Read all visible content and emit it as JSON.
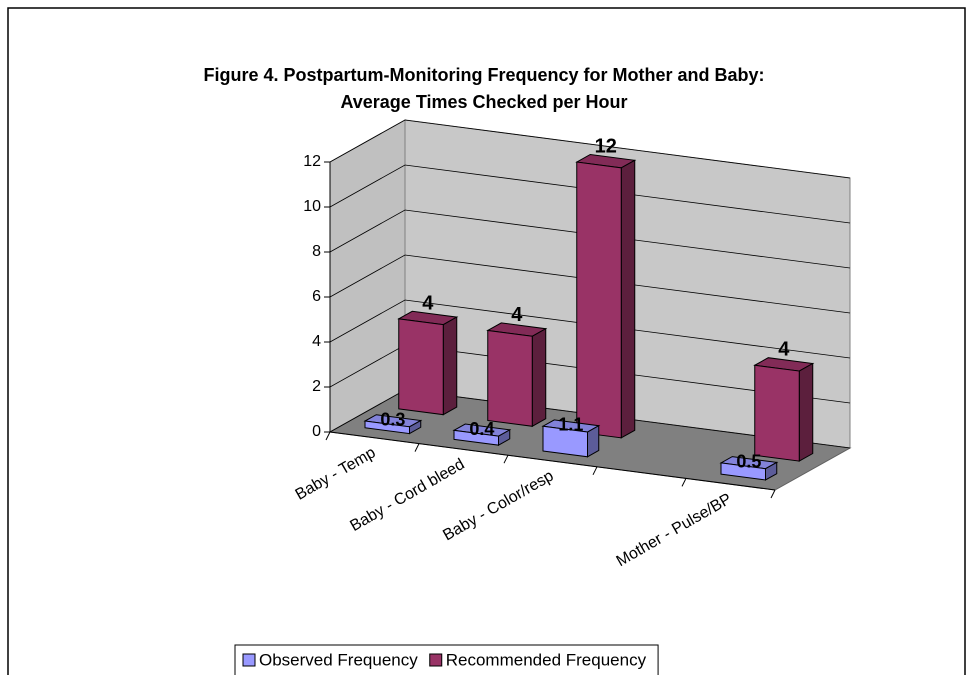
{
  "chart_data": {
    "type": "bar3d",
    "title": [
      "Figure 4. Postpartum-Monitoring Frequency for Mother and Baby:",
      "Average Times Checked per Hour"
    ],
    "categories": [
      "Baby - Temp",
      "Baby - Cord bleed",
      "Baby - Color/resp",
      null,
      "Mother - Pulse/BP"
    ],
    "series": [
      {
        "name": "Observed Frequency",
        "color": "#9999ff",
        "values": [
          0.3,
          0.4,
          1.1,
          null,
          0.5
        ]
      },
      {
        "name": "Recommended Frequency",
        "color": "#993366",
        "values": [
          4,
          4,
          12,
          null,
          4
        ]
      }
    ],
    "ylim": [
      0,
      12
    ],
    "yticks": [
      0,
      2,
      4,
      6,
      8,
      10,
      12
    ],
    "grid": true,
    "legend": "bottom"
  }
}
